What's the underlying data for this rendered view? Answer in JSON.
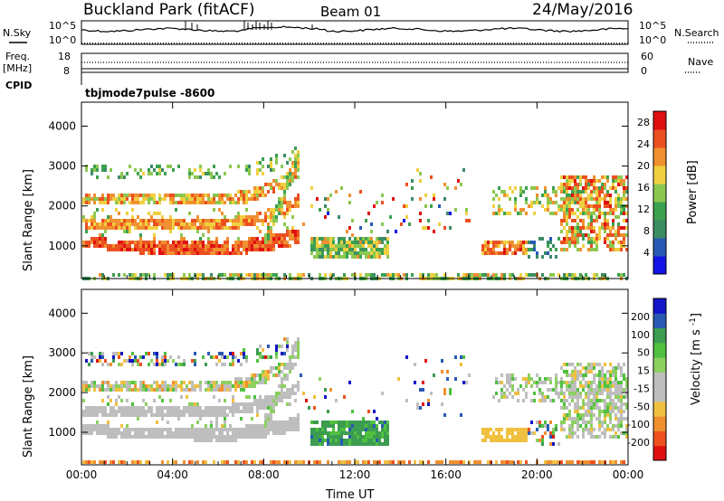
{
  "header": {
    "station": "Buckland Park (fitACF)",
    "beam": "Beam 01",
    "date": "24/May/2016"
  },
  "sidebar": {
    "nsky_label": "N.Sky",
    "nsearch_label": "N.Search",
    "freq_label": "Freq.",
    "freq_unit": "[MHz]",
    "nave_label": "Nave",
    "cpid_label": "CPID",
    "noise_ticks": [
      "10^5",
      "10^0"
    ],
    "freq_ticks": [
      "18",
      "8"
    ],
    "nave_ticks": [
      "60",
      "0"
    ]
  },
  "cpid_text": "tbjmode7pulse -8600",
  "colors": {
    "power": [
      "#1414e6",
      "#285ab4",
      "#3c8c64",
      "#3ca050",
      "#8cc850",
      "#f0d040",
      "#f09030",
      "#ec5020",
      "#e01010"
    ],
    "velocity": [
      "#e01010",
      "#f05020",
      "#f09030",
      "#f0c040",
      "#bebebe",
      "#bebebe",
      "#8cd060",
      "#50c040",
      "#3c9c50",
      "#285ab4",
      "#1414c8"
    ]
  },
  "chart_data": [
    {
      "type": "heatmap",
      "name": "power",
      "xlabel": "",
      "ylabel": "Slant Range [km]",
      "x_ticks": [
        "00:00",
        "04:00",
        "08:00",
        "12:00",
        "16:00",
        "20:00",
        "00:00"
      ],
      "y_ticks": [
        1000,
        2000,
        3000,
        4000
      ],
      "xlim": [
        0,
        24
      ],
      "ylim": [
        180,
        4600
      ],
      "colorbar": {
        "label": "Power [dB]",
        "ticks": [
          4,
          8,
          12,
          16,
          20,
          24,
          28
        ],
        "range": [
          0,
          30
        ]
      }
    },
    {
      "type": "heatmap",
      "name": "velocity",
      "xlabel": "Time UT",
      "ylabel": "Slant Range [km]",
      "x_ticks": [
        "00:00",
        "04:00",
        "08:00",
        "12:00",
        "16:00",
        "20:00",
        "00:00"
      ],
      "y_ticks": [
        1000,
        2000,
        3000,
        4000
      ],
      "xlim": [
        0,
        24
      ],
      "ylim": [
        180,
        4600
      ],
      "colorbar": {
        "label": "Velocity [m s-1]",
        "ticks": [
          200,
          100,
          50,
          15,
          -15,
          -50,
          -100,
          -200
        ]
      }
    }
  ]
}
